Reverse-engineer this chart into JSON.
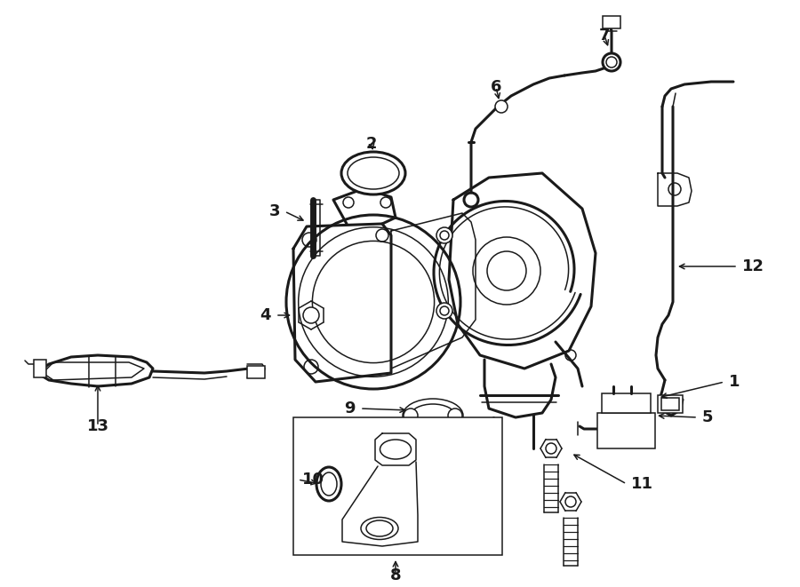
{
  "bg_color": "#ffffff",
  "line_color": "#1a1a1a",
  "lw": 1.1,
  "fig_width": 9.0,
  "fig_height": 6.61,
  "dpi": 100
}
